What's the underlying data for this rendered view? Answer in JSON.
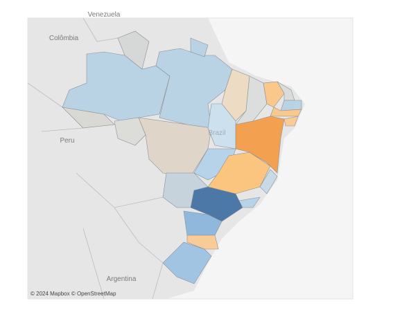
{
  "map": {
    "labels": [
      "Venezuela",
      "Colômbia",
      "Peru",
      "Brazil",
      "Argentina"
    ],
    "attribution": "© 2024 Mapbox © OpenStreetMap"
  }
}
